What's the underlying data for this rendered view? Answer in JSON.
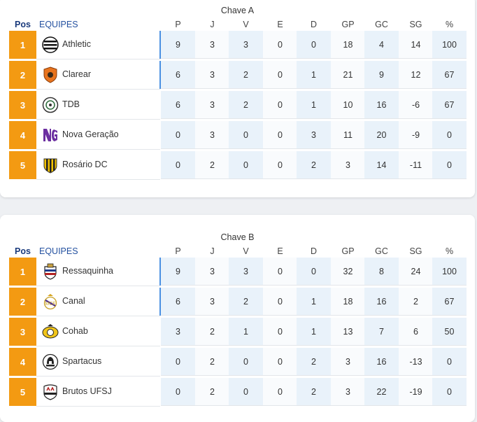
{
  "columns": {
    "pos": "Pos",
    "team": "EQUIPES",
    "p": "P",
    "j": "J",
    "v": "V",
    "e": "E",
    "d": "D",
    "gp": "GP",
    "gc": "GC",
    "sg": "SG",
    "pct": "%"
  },
  "groups": [
    {
      "title": "Chave A",
      "rows": [
        {
          "pos": "1",
          "team": "Athletic",
          "logo": "athletic-logo",
          "p": "9",
          "j": "3",
          "v": "3",
          "e": "0",
          "d": "0",
          "gp": "18",
          "gc": "4",
          "sg": "14",
          "pct": "100"
        },
        {
          "pos": "2",
          "team": "Clarear",
          "logo": "clarear-logo",
          "p": "6",
          "j": "3",
          "v": "2",
          "e": "0",
          "d": "1",
          "gp": "21",
          "gc": "9",
          "sg": "12",
          "pct": "67"
        },
        {
          "pos": "3",
          "team": "TDB",
          "logo": "tdb-logo",
          "p": "6",
          "j": "3",
          "v": "2",
          "e": "0",
          "d": "1",
          "gp": "10",
          "gc": "16",
          "sg": "-6",
          "pct": "67"
        },
        {
          "pos": "4",
          "team": "Nova Geração",
          "logo": "nova-geracao-logo",
          "p": "0",
          "j": "3",
          "v": "0",
          "e": "0",
          "d": "3",
          "gp": "11",
          "gc": "20",
          "sg": "-9",
          "pct": "0"
        },
        {
          "pos": "5",
          "team": "Rosário DC",
          "logo": "rosario-dc-logo",
          "p": "0",
          "j": "2",
          "v": "0",
          "e": "0",
          "d": "2",
          "gp": "3",
          "gc": "14",
          "sg": "-11",
          "pct": "0"
        }
      ]
    },
    {
      "title": "Chave B",
      "rows": [
        {
          "pos": "1",
          "team": "Ressaquinha",
          "logo": "ressaquinha-logo",
          "p": "9",
          "j": "3",
          "v": "3",
          "e": "0",
          "d": "0",
          "gp": "32",
          "gc": "8",
          "sg": "24",
          "pct": "100"
        },
        {
          "pos": "2",
          "team": "Canal",
          "logo": "canal-logo",
          "p": "6",
          "j": "3",
          "v": "2",
          "e": "0",
          "d": "1",
          "gp": "18",
          "gc": "16",
          "sg": "2",
          "pct": "67"
        },
        {
          "pos": "3",
          "team": "Cohab",
          "logo": "cohab-logo",
          "p": "3",
          "j": "2",
          "v": "1",
          "e": "0",
          "d": "1",
          "gp": "13",
          "gc": "7",
          "sg": "6",
          "pct": "50"
        },
        {
          "pos": "4",
          "team": "Spartacus",
          "logo": "spartacus-logo",
          "p": "0",
          "j": "2",
          "v": "0",
          "e": "0",
          "d": "2",
          "gp": "3",
          "gc": "16",
          "sg": "-13",
          "pct": "0"
        },
        {
          "pos": "5",
          "team": "Brutos UFSJ",
          "logo": "brutos-ufsj-logo",
          "p": "0",
          "j": "2",
          "v": "0",
          "e": "0",
          "d": "2",
          "gp": "3",
          "gc": "22",
          "sg": "-19",
          "pct": "0"
        }
      ]
    }
  ],
  "colors": {
    "position_box": "#f39a12",
    "header_pos": "#1a3a7c",
    "header_team": "#2451a0",
    "highlight_bar": "#4a90e2",
    "stat_shade": "#e9f2fa"
  }
}
